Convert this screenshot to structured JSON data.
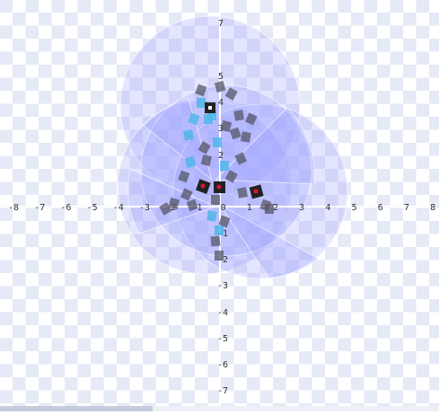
{
  "scene": {
    "x_ticks": [
      "-8",
      "-7",
      "-6",
      "-5",
      "-4",
      "-3",
      "-2",
      "-1",
      "0",
      "1",
      "2",
      "3",
      "4",
      "5",
      "6",
      "7",
      "8"
    ],
    "y_ticks_top": [
      "7",
      "5",
      "4",
      "3",
      "2"
    ],
    "y_ticks_bottom": [
      "-1",
      "-2",
      "-3",
      "-4",
      "-5",
      "-6",
      "-7"
    ],
    "colors": {
      "checker": "#e6e9f6",
      "disc_fill": "#9ea3ff",
      "block_dark": "#555566",
      "block_light": "#4fb6e8",
      "joint": "#d21a35"
    },
    "scrollbar_position": 0.35
  }
}
